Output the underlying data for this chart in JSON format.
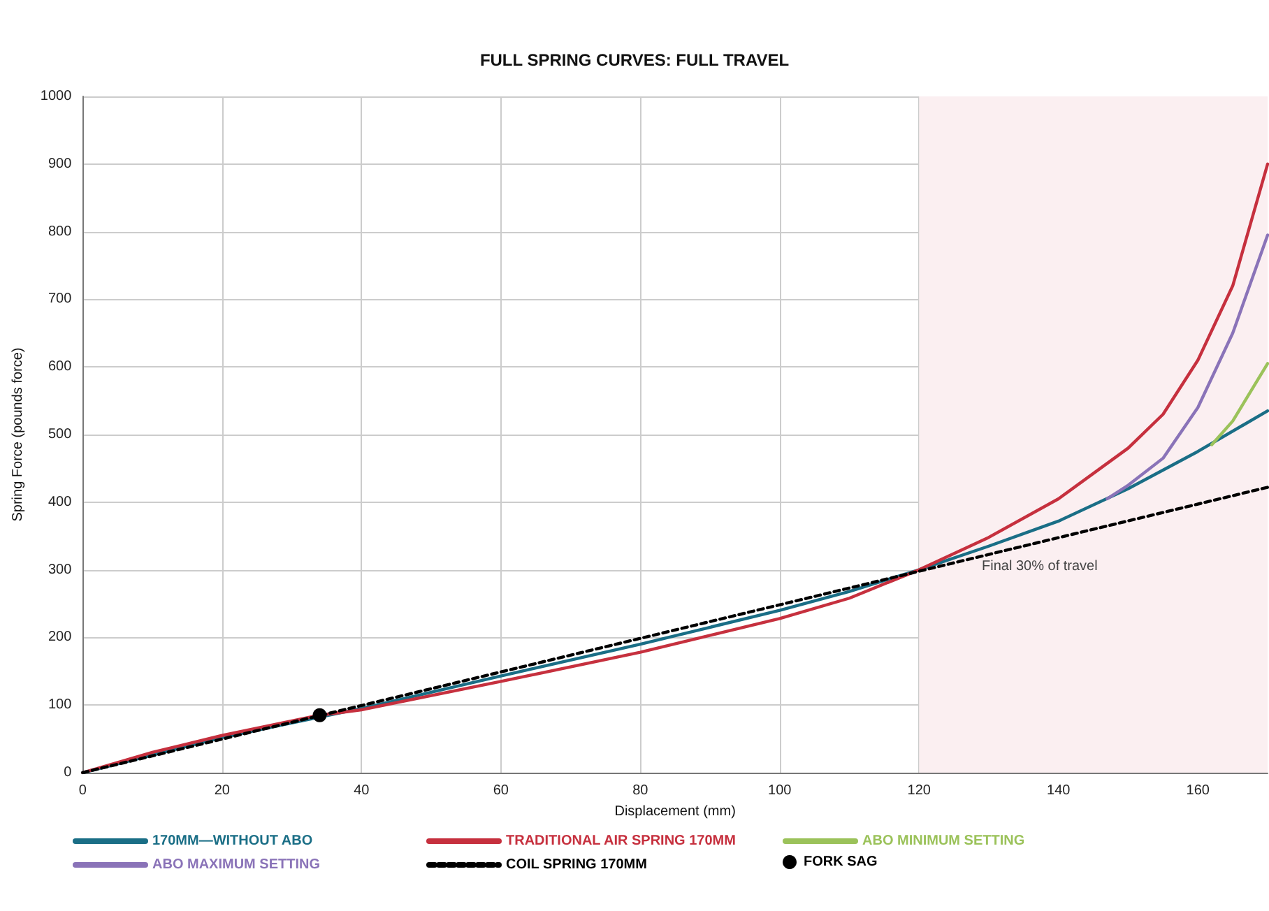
{
  "chart_data": {
    "type": "line",
    "title": "FULL SPRING CURVES: FULL TRAVEL",
    "xlabel": "Displacement (mm)",
    "ylabel": "Spring Force (pounds force)",
    "xlim": [
      0,
      170
    ],
    "xticks": [
      0,
      20,
      40,
      60,
      80,
      100,
      120,
      140,
      160
    ],
    "ylim": [
      0,
      1000
    ],
    "yticks": [
      0,
      100,
      200,
      300,
      400,
      500,
      600,
      700,
      800,
      900,
      1000
    ],
    "grid": true,
    "legend": "bottom",
    "marker": "none",
    "bands": [
      {
        "axis": "x",
        "from": 120,
        "to": 170,
        "label": "Final 30% of travel",
        "color": "#fbeff1"
      }
    ],
    "series": [
      {
        "name": "170MM—WITHOUT ABO",
        "color": "#1a6e86",
        "x": [
          0,
          20,
          40,
          60,
          80,
          100,
          110,
          120,
          130,
          140,
          150,
          160,
          170
        ],
        "values": [
          0,
          52,
          95,
          143,
          190,
          240,
          268,
          300,
          335,
          372,
          420,
          475,
          535
        ]
      },
      {
        "name": "TRADITIONAL AIR SPRING 170MM",
        "color": "#c6303e",
        "x": [
          0,
          10,
          20,
          34,
          40,
          60,
          80,
          100,
          110,
          120,
          130,
          140,
          150,
          155,
          160,
          165,
          170
        ],
        "values": [
          0,
          30,
          55,
          85,
          93,
          135,
          178,
          228,
          258,
          300,
          348,
          405,
          480,
          530,
          610,
          720,
          900
        ]
      },
      {
        "name": "ABO MINIMUM SETTING",
        "color": "#9bc25a",
        "x": [
          162,
          165,
          170
        ],
        "values": [
          485,
          520,
          605
        ]
      },
      {
        "name": "ABO MAXIMUM SETTING",
        "color": "#8a73b8",
        "x": [
          147,
          150,
          155,
          160,
          165,
          170
        ],
        "values": [
          405,
          425,
          465,
          540,
          650,
          795
        ]
      },
      {
        "name": "COIL SPRING 170MM",
        "color": "#000000",
        "line_style": "dashed",
        "x": [
          0,
          170
        ],
        "values": [
          0,
          422
        ]
      },
      {
        "name": "FORK SAG",
        "type": "scatter",
        "marker": "circle",
        "color": "#000000",
        "x": [
          34
        ],
        "values": [
          85
        ]
      }
    ]
  }
}
